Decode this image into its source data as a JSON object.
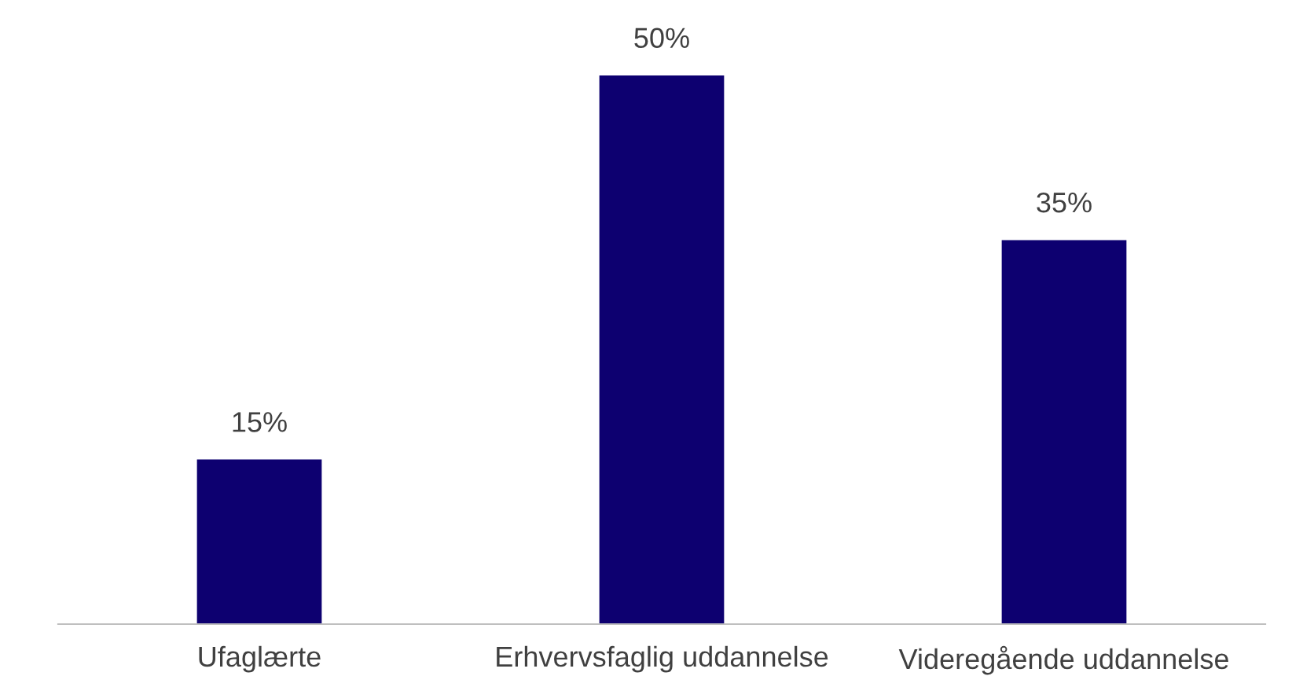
{
  "chart_data": {
    "type": "bar",
    "categories": [
      "Ufaglærte",
      "Erhvervsfaglig uddannelse",
      "Videregående uddannelse"
    ],
    "values": [
      15,
      50,
      35
    ],
    "value_labels": [
      "15%",
      "50%",
      "35%"
    ],
    "color": "#0d0070",
    "grid": false,
    "legend": false
  }
}
